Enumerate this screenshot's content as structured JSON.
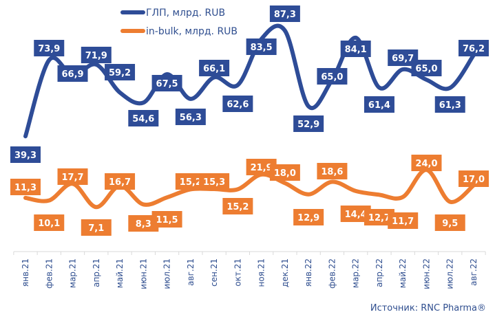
{
  "chart_data": {
    "type": "line",
    "categories": [
      "янв.21",
      "фев.21",
      "мар.21",
      "апр.21",
      "май.21",
      "июн.21",
      "июл.21",
      "авг.21",
      "сен.21",
      "окт.21",
      "ноя.21",
      "дек.21",
      "янв.22",
      "фев.22",
      "мар.22",
      "апр.22",
      "май.22",
      "июн.22",
      "июл.22",
      "авг.22"
    ],
    "series": [
      {
        "name": "ГЛП, млрд. RUB",
        "color": "#2E4C97",
        "values": [
          39.3,
          73.9,
          66.9,
          71.9,
          59.2,
          54.6,
          67.5,
          56.3,
          66.1,
          62.6,
          83.5,
          87.3,
          52.9,
          65.0,
          84.1,
          61.4,
          69.7,
          65.0,
          61.3,
          76.2
        ]
      },
      {
        "name": "in-bulk, млрд. RUB",
        "color": "#ED7D31",
        "values": [
          11.3,
          10.1,
          17.7,
          7.1,
          16.7,
          8.3,
          11.5,
          15.2,
          15.3,
          15.2,
          21.9,
          18.0,
          12.9,
          18.6,
          14.4,
          12.7,
          11.7,
          24.0,
          9.5,
          17.0
        ]
      }
    ],
    "legend": "top-center",
    "grid": false,
    "data_labels": true,
    "decimal_separator": ","
  },
  "source": "Источник: RNC Pharma®"
}
